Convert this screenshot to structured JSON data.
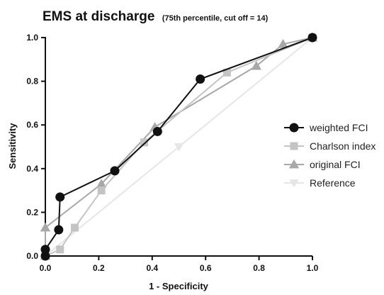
{
  "chart_data": {
    "type": "line",
    "title": "EMS at discharge",
    "subtitle": "(75th percentile, cut off = 14)",
    "xlabel": "1 - Specificity",
    "ylabel": "Sensitivity",
    "xlim": [
      0,
      1
    ],
    "ylim": [
      0,
      1
    ],
    "x_ticks": [
      "0.0",
      "0.2",
      "0.4",
      "0.6",
      "0.8",
      "1.0"
    ],
    "y_ticks": [
      "0.0",
      "0.2",
      "0.4",
      "0.6",
      "0.8",
      "1.0"
    ],
    "grid": false,
    "legend_position": "right",
    "series": [
      {
        "name": "weighted FCI",
        "color": "#111111",
        "marker": "circle",
        "x": [
          0.0,
          0.0,
          0.05,
          0.055,
          0.26,
          0.42,
          0.58,
          1.0
        ],
        "y": [
          0.0,
          0.03,
          0.12,
          0.27,
          0.39,
          0.57,
          0.81,
          1.0
        ]
      },
      {
        "name": "Charlson index",
        "color": "#c4c4c4",
        "marker": "square",
        "x": [
          0.0,
          0.055,
          0.11,
          0.21,
          0.37,
          0.68,
          1.0
        ],
        "y": [
          0.0,
          0.03,
          0.13,
          0.3,
          0.52,
          0.84,
          1.0
        ]
      },
      {
        "name": "original FCI",
        "color": "#a8a8a8",
        "marker": "triangle-up",
        "x": [
          0.0,
          0.0,
          0.21,
          0.41,
          0.79,
          0.89,
          1.0
        ],
        "y": [
          0.0,
          0.13,
          0.33,
          0.59,
          0.87,
          0.97,
          1.0
        ]
      },
      {
        "name": "Reference",
        "color": "#e6e6e6",
        "marker": "triangle-down",
        "x": [
          0.0,
          0.5,
          1.0
        ],
        "y": [
          0.0,
          0.5,
          1.0
        ]
      }
    ]
  }
}
